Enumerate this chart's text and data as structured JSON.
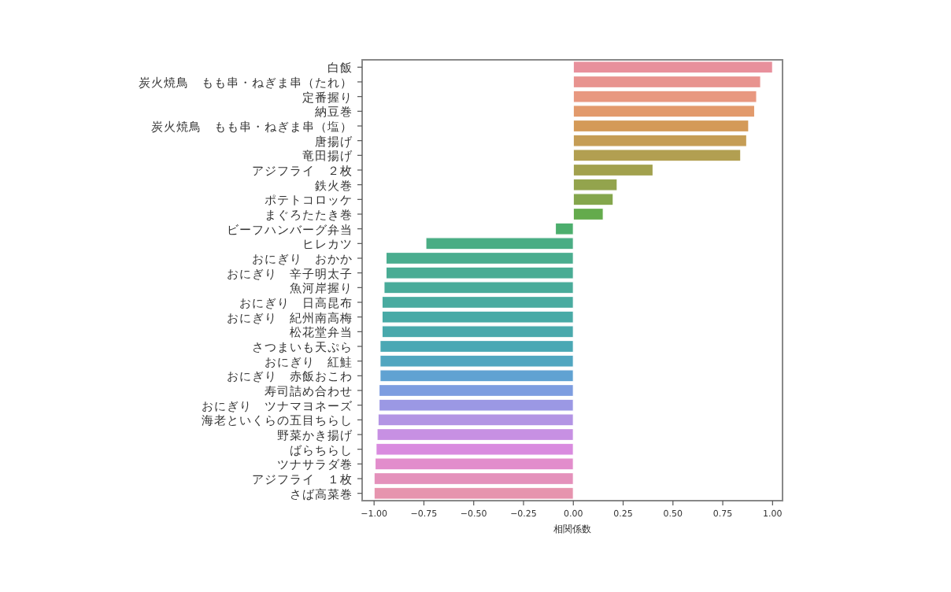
{
  "chart_data": {
    "type": "bar",
    "orientation": "horizontal",
    "xlabel": "相関係数",
    "categories": [
      "白飯",
      "炭火焼鳥　もも串・ねぎま串（たれ）",
      "定番握り",
      "納豆巻",
      "炭火焼鳥　もも串・ねぎま串（塩）",
      "唐揚げ",
      "竜田揚げ",
      "アジフライ　２枚",
      "鉄火巻",
      "ポテトコロッケ",
      "まぐろたたき巻",
      "ビーフハンバーグ弁当",
      "ヒレカツ",
      "おにぎり　おかか",
      "おにぎり　辛子明太子",
      "魚河岸握り",
      "おにぎり　日高昆布",
      "おにぎり　紀州南高梅",
      "松花堂弁当",
      "さつまいも天ぷら",
      "おにぎり　紅鮭",
      "おにぎり　赤飯おこわ",
      "寿司詰め合わせ",
      "おにぎり　ツナマヨネーズ",
      "海老といくらの五目ちらし",
      "野菜かき揚げ",
      "ばらちらし",
      "ツナサラダ巻",
      "アジフライ　１枚",
      "さば高菜巻"
    ],
    "values": [
      1.0,
      0.94,
      0.92,
      0.91,
      0.88,
      0.87,
      0.84,
      0.4,
      0.22,
      0.2,
      0.15,
      -0.09,
      -0.74,
      -0.94,
      -0.94,
      -0.95,
      -0.96,
      -0.96,
      -0.96,
      -0.97,
      -0.97,
      -0.97,
      -0.975,
      -0.975,
      -0.98,
      -0.985,
      -0.99,
      -0.995,
      -1.0,
      -1.0
    ],
    "colors": [
      "#e8909c",
      "#e8938f",
      "#e89880",
      "#e29a6c",
      "#d49a58",
      "#c59d55",
      "#b29f51",
      "#a2a14e",
      "#93a44d",
      "#84a64c",
      "#64ab4c",
      "#4cae6d",
      "#4aad84",
      "#4aad8f",
      "#49ac94",
      "#49ab9a",
      "#49aba0",
      "#48aaa6",
      "#49a9ac",
      "#4aa8b4",
      "#50a6c0",
      "#60a2d2",
      "#7d9de0",
      "#9b98e4",
      "#b394e4",
      "#c790e3",
      "#d98bdf",
      "#e28dcc",
      "#e491bb",
      "#e694ae"
    ],
    "xlim": [
      -1.06,
      1.05
    ],
    "xticks": [
      {
        "value": -1,
        "label": "−1.00"
      },
      {
        "value": -0.75,
        "label": "−0.75"
      },
      {
        "value": -0.5,
        "label": "−0.50"
      },
      {
        "value": -0.25,
        "label": "−0.25"
      },
      {
        "value": 0,
        "label": "0.00"
      },
      {
        "value": 0.25,
        "label": "0.25"
      },
      {
        "value": 0.5,
        "label": "0.50"
      },
      {
        "value": 0.75,
        "label": "0.75"
      },
      {
        "value": 1,
        "label": "1.00"
      }
    ]
  }
}
